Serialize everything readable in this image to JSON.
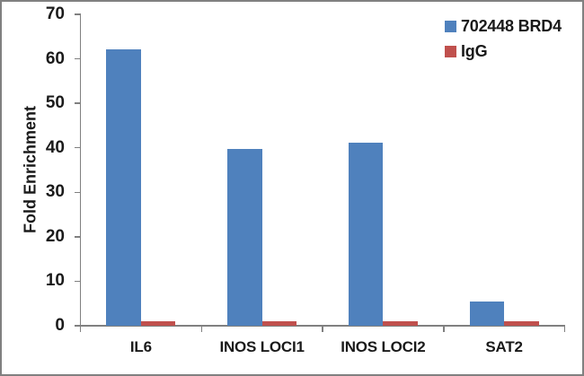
{
  "chart_data": {
    "type": "bar",
    "title": "",
    "categories": [
      "IL6",
      "INOS LOCI1",
      "INOS LOCI2",
      "SAT2"
    ],
    "series": [
      {
        "name": "702448 BRD4",
        "color": "#4F81BD",
        "values": [
          62.2,
          39.8,
          41.2,
          5.5
        ]
      },
      {
        "name": "IgG",
        "color": "#C0504D",
        "values": [
          1.1,
          1.1,
          1.1,
          1.1
        ]
      }
    ],
    "xlabel": "",
    "ylabel": "Fold Enrichment",
    "ylim": [
      0,
      70
    ],
    "ytick_step": 10,
    "yticks": [
      0,
      10,
      20,
      30,
      40,
      50,
      60,
      70
    ],
    "grid": false,
    "legend_position": "top-right",
    "colors": {
      "axis": "#808080",
      "frame_border": "#808080",
      "text": "#1a1a1a",
      "background": "#ffffff"
    }
  }
}
